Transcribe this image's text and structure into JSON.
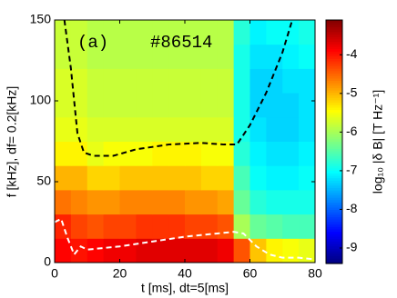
{
  "chart_data": {
    "type": "heatmap",
    "xlabel": "t [ms], dt=5[ms]",
    "ylabel": "f [kHz], df= 0.2[kHz]",
    "colorbar_label": "log₁₀ |δ B| [T Hz⁻¹]",
    "annotations": [
      "(a)",
      "#86514"
    ],
    "x": [
      2.5,
      7.5,
      12.5,
      17.5,
      22.5,
      27.5,
      32.5,
      37.5,
      42.5,
      47.5,
      52.5,
      57.5,
      62.5,
      67.5,
      72.5,
      77.5
    ],
    "y": [
      7.5,
      22.5,
      37.5,
      52.5,
      67.5,
      82.5,
      97.5,
      112.5,
      127.5,
      142.5
    ],
    "z": [
      [
        -3.9,
        -4.0,
        -3.9,
        -3.8,
        -3.8,
        -3.7,
        -3.7,
        -3.7,
        -3.7,
        -3.7,
        -3.8,
        -4.4,
        -5.1,
        -5.4,
        -5.5,
        -5.6
      ],
      [
        -4.1,
        -4.3,
        -4.4,
        -4.3,
        -4.3,
        -4.2,
        -4.2,
        -4.2,
        -4.3,
        -4.3,
        -4.4,
        -6.0,
        -6.4,
        -6.5,
        -6.6,
        -6.6
      ],
      [
        -4.6,
        -4.7,
        -4.8,
        -4.8,
        -4.7,
        -4.7,
        -4.7,
        -4.7,
        -4.8,
        -4.8,
        -4.9,
        -6.4,
        -6.8,
        -6.9,
        -6.9,
        -6.9
      ],
      [
        -5.0,
        -5.0,
        -5.2,
        -5.2,
        -5.1,
        -5.1,
        -5.1,
        -5.1,
        -5.1,
        -5.2,
        -5.2,
        -6.6,
        -7.0,
        -7.1,
        -7.1,
        -7.0
      ],
      [
        -5.4,
        -5.4,
        -5.6,
        -5.5,
        -5.5,
        -5.5,
        -5.4,
        -5.4,
        -5.4,
        -5.5,
        -5.5,
        -6.8,
        -7.1,
        -7.2,
        -7.2,
        -7.1
      ],
      [
        -5.6,
        -5.6,
        -5.7,
        -5.7,
        -5.7,
        -5.7,
        -5.7,
        -5.7,
        -5.7,
        -5.7,
        -5.7,
        -6.9,
        -7.2,
        -7.3,
        -7.3,
        -7.2
      ],
      [
        -5.7,
        -5.7,
        -5.8,
        -5.8,
        -5.8,
        -5.8,
        -5.8,
        -5.8,
        -5.8,
        -5.8,
        -5.8,
        -6.9,
        -7.3,
        -7.3,
        -7.3,
        -7.2
      ],
      [
        -5.7,
        -5.7,
        -5.8,
        -5.8,
        -5.8,
        -5.8,
        -5.8,
        -5.8,
        -5.8,
        -5.8,
        -5.8,
        -6.9,
        -7.3,
        -7.3,
        -7.2,
        -7.2
      ],
      [
        -5.8,
        -5.8,
        -5.9,
        -5.9,
        -5.9,
        -5.9,
        -5.9,
        -5.9,
        -5.9,
        -5.9,
        -5.9,
        -6.9,
        -7.2,
        -7.2,
        -7.1,
        -7.0
      ],
      [
        -5.8,
        -5.8,
        -5.9,
        -5.9,
        -5.9,
        -5.9,
        -5.9,
        -5.9,
        -5.9,
        -5.9,
        -5.9,
        -6.8,
        -7.1,
        -7.0,
        -7.0,
        -6.9
      ]
    ],
    "colormap": "jet",
    "clim": [
      -9.4,
      -3.1
    ],
    "cticks": [
      -4,
      -5,
      -6,
      -7,
      -8,
      -9
    ],
    "xlim": [
      0,
      80
    ],
    "xticks": [
      0,
      20,
      40,
      60,
      80
    ],
    "ylim": [
      0,
      150
    ],
    "yticks": [
      0,
      50,
      100,
      150
    ],
    "lines": [
      {
        "color": "#000000",
        "x": [
          3,
          5,
          7,
          9,
          12,
          18,
          25,
          35,
          45,
          52,
          56,
          60,
          65,
          70,
          73
        ],
        "values": [
          150,
          120,
          80,
          68,
          66,
          66,
          70,
          73,
          74,
          73,
          73,
          85,
          105,
          130,
          150
        ]
      },
      {
        "color": "#ffffff",
        "x": [
          0,
          2,
          4,
          6,
          8,
          10,
          15,
          20,
          30,
          40,
          50,
          55,
          58,
          62,
          66,
          70,
          75,
          80
        ],
        "values": [
          25,
          27,
          15,
          5,
          10,
          8,
          9,
          10,
          13,
          16,
          18,
          19,
          18,
          10,
          5,
          3,
          3,
          2
        ]
      }
    ]
  }
}
